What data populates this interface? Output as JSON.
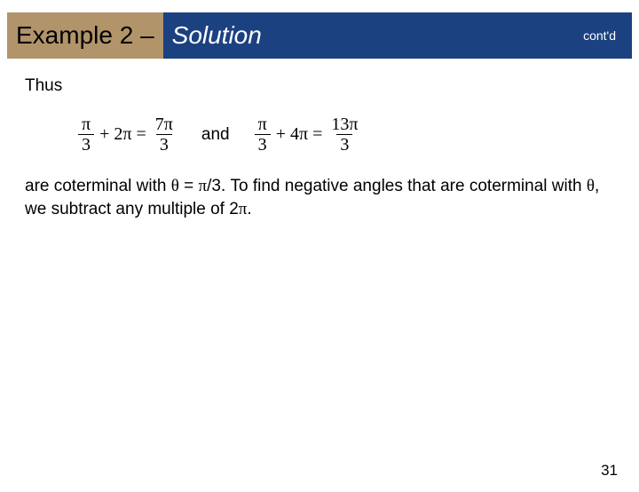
{
  "header": {
    "left": "Example 2 – ",
    "solution": "Solution",
    "contd": "cont'd",
    "colors": {
      "left_bg": "#b2946b",
      "right_bg": "#1b4181",
      "left_text": "#000000",
      "right_text": "#ffffff"
    }
  },
  "body": {
    "thus": "Thus",
    "eq1": {
      "frac1_num": "π",
      "frac1_den": "3",
      "plus": "+ 2π =",
      "frac2_num": "7π",
      "frac2_den": "3"
    },
    "and": "and",
    "eq2": {
      "frac1_num": "π",
      "frac1_den": "3",
      "plus": "+ 4π =",
      "frac2_num": "13π",
      "frac2_den": "3"
    },
    "para_1": "are coterminal with ",
    "theta1": "θ",
    "eqword": " = ",
    "pi1": "π",
    "para_2": "/3. To find negative angles that are coterminal with ",
    "theta2": "θ",
    "para_3": ", we subtract any multiple of 2",
    "pi2": "π",
    "para_4": "."
  },
  "page_number": "31"
}
